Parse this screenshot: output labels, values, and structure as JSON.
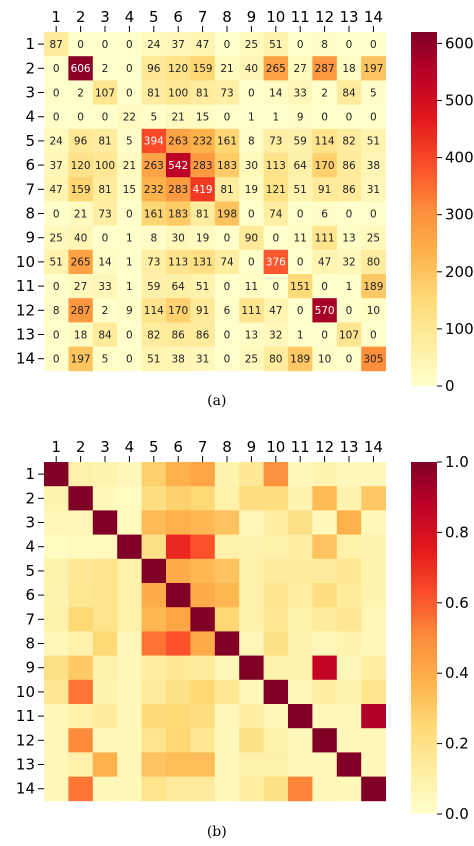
{
  "chart_data": [
    {
      "type": "heatmap",
      "caption": "(a)",
      "x_labels": [
        "1",
        "2",
        "3",
        "4",
        "5",
        "6",
        "7",
        "8",
        "9",
        "10",
        "11",
        "12",
        "13",
        "14"
      ],
      "y_labels": [
        "1",
        "2",
        "3",
        "4",
        "5",
        "6",
        "7",
        "8",
        "9",
        "10",
        "11",
        "12",
        "13",
        "14"
      ],
      "show_values": true,
      "values": [
        [
          87,
          0,
          0,
          0,
          24,
          37,
          47,
          0,
          25,
          51,
          0,
          8,
          0,
          0
        ],
        [
          0,
          606,
          2,
          0,
          96,
          120,
          159,
          21,
          40,
          265,
          27,
          287,
          18,
          197
        ],
        [
          0,
          2,
          107,
          0,
          81,
          100,
          81,
          73,
          0,
          14,
          33,
          2,
          84,
          5
        ],
        [
          0,
          0,
          0,
          22,
          5,
          21,
          15,
          0,
          1,
          1,
          9,
          0,
          0,
          0
        ],
        [
          24,
          96,
          81,
          5,
          394,
          263,
          232,
          161,
          8,
          73,
          59,
          114,
          82,
          51
        ],
        [
          37,
          120,
          100,
          21,
          263,
          542,
          283,
          183,
          30,
          113,
          64,
          170,
          86,
          38
        ],
        [
          47,
          159,
          81,
          15,
          232,
          283,
          419,
          81,
          19,
          121,
          51,
          91,
          86,
          31
        ],
        [
          0,
          21,
          73,
          0,
          161,
          183,
          81,
          198,
          0,
          74,
          0,
          6,
          0,
          0
        ],
        [
          25,
          40,
          0,
          1,
          8,
          30,
          19,
          0,
          90,
          0,
          11,
          111,
          13,
          25
        ],
        [
          51,
          265,
          14,
          1,
          73,
          113,
          131,
          74,
          0,
          376,
          0,
          47,
          32,
          80
        ],
        [
          0,
          27,
          33,
          1,
          59,
          64,
          51,
          0,
          11,
          0,
          151,
          0,
          1,
          189
        ],
        [
          8,
          287,
          2,
          9,
          114,
          170,
          91,
          6,
          111,
          47,
          0,
          570,
          0,
          10
        ],
        [
          0,
          18,
          84,
          0,
          82,
          86,
          86,
          0,
          13,
          32,
          1,
          0,
          107,
          0
        ],
        [
          0,
          197,
          5,
          0,
          51,
          38,
          31,
          0,
          25,
          80,
          189,
          10,
          0,
          305
        ]
      ],
      "colorbar": {
        "min": 0,
        "max": 620,
        "ticks": [
          0,
          100,
          200,
          300,
          400,
          500,
          600
        ]
      },
      "colormap": [
        "#ffffcc",
        "#ffeda0",
        "#fed976",
        "#feb24c",
        "#fd8d3c",
        "#fc4e2a",
        "#e31a1c",
        "#bd0026",
        "#800026"
      ]
    },
    {
      "type": "heatmap",
      "caption": "(b)",
      "x_labels": [
        "1",
        "2",
        "3",
        "4",
        "5",
        "6",
        "7",
        "8",
        "9",
        "10",
        "11",
        "12",
        "13",
        "14"
      ],
      "y_labels": [
        "1",
        "2",
        "3",
        "4",
        "5",
        "6",
        "7",
        "8",
        "9",
        "10",
        "11",
        "12",
        "13",
        "14"
      ],
      "show_values": false,
      "values": [
        [
          1.0,
          0.1,
          0.08,
          0.05,
          0.28,
          0.38,
          0.42,
          0.08,
          0.15,
          0.48,
          0.05,
          0.08,
          0.05,
          0.05
        ],
        [
          0.08,
          1.0,
          0.05,
          0.03,
          0.22,
          0.28,
          0.25,
          0.1,
          0.22,
          0.22,
          0.08,
          0.35,
          0.08,
          0.3
        ],
        [
          0.06,
          0.06,
          1.0,
          0.04,
          0.35,
          0.38,
          0.36,
          0.32,
          0.06,
          0.12,
          0.2,
          0.05,
          0.38,
          0.05
        ],
        [
          0.03,
          0.04,
          0.04,
          1.0,
          0.2,
          0.72,
          0.62,
          0.1,
          0.08,
          0.1,
          0.12,
          0.32,
          0.1,
          0.08
        ],
        [
          0.1,
          0.15,
          0.18,
          0.1,
          1.0,
          0.4,
          0.36,
          0.32,
          0.1,
          0.14,
          0.14,
          0.14,
          0.16,
          0.08
        ],
        [
          0.08,
          0.17,
          0.18,
          0.1,
          0.4,
          1.0,
          0.4,
          0.36,
          0.1,
          0.18,
          0.12,
          0.22,
          0.14,
          0.08
        ],
        [
          0.1,
          0.25,
          0.18,
          0.1,
          0.36,
          0.42,
          1.0,
          0.26,
          0.1,
          0.16,
          0.1,
          0.14,
          0.16,
          0.06
        ],
        [
          0.06,
          0.1,
          0.25,
          0.06,
          0.55,
          0.62,
          0.4,
          1.0,
          0.06,
          0.2,
          0.08,
          0.05,
          0.08,
          0.05
        ],
        [
          0.2,
          0.3,
          0.1,
          0.06,
          0.12,
          0.15,
          0.14,
          0.06,
          1.0,
          0.08,
          0.08,
          0.85,
          0.06,
          0.12
        ],
        [
          0.16,
          0.55,
          0.08,
          0.05,
          0.14,
          0.2,
          0.26,
          0.16,
          0.05,
          1.0,
          0.05,
          0.12,
          0.08,
          0.18
        ],
        [
          0.06,
          0.1,
          0.14,
          0.06,
          0.24,
          0.25,
          0.22,
          0.06,
          0.12,
          0.05,
          1.0,
          0.05,
          0.06,
          0.9
        ],
        [
          0.06,
          0.5,
          0.05,
          0.05,
          0.18,
          0.26,
          0.16,
          0.05,
          0.2,
          0.1,
          0.05,
          1.0,
          0.05,
          0.06
        ],
        [
          0.06,
          0.1,
          0.38,
          0.06,
          0.32,
          0.34,
          0.34,
          0.05,
          0.1,
          0.1,
          0.05,
          0.05,
          1.0,
          0.05
        ],
        [
          0.05,
          0.55,
          0.05,
          0.05,
          0.18,
          0.14,
          0.14,
          0.05,
          0.12,
          0.2,
          0.52,
          0.06,
          0.05,
          1.0
        ]
      ],
      "colorbar": {
        "min": 0,
        "max": 1,
        "ticks": [
          "0.0",
          "0.2",
          "0.4",
          "0.6",
          "0.8",
          "1.0"
        ]
      },
      "colormap": [
        "#ffffcc",
        "#ffeda0",
        "#fed976",
        "#feb24c",
        "#fd8d3c",
        "#fc4e2a",
        "#e31a1c",
        "#bd0026",
        "#800026"
      ]
    }
  ]
}
